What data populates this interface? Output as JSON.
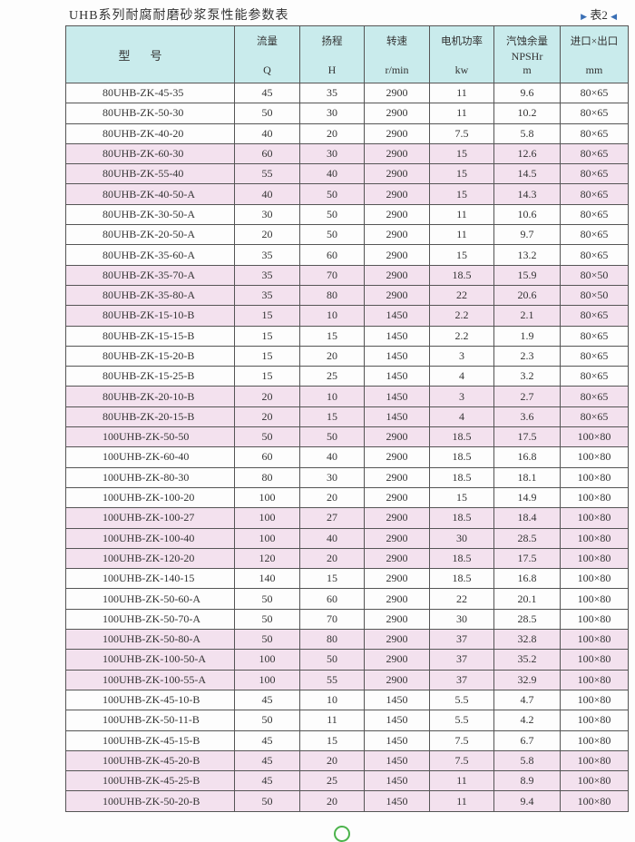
{
  "title": "UHB系列耐腐耐磨砂浆泵性能参数表",
  "table_tag": "表2",
  "headers": {
    "model": "型号",
    "q": "流量",
    "q_unit": "Q",
    "h": "扬程",
    "h_unit": "H",
    "speed": "转速",
    "speed_unit": "r/min",
    "power": "电机功率",
    "power_unit": "kw",
    "npsh": "汽蚀余量",
    "npsh_sub": "NPSHr",
    "npsh_unit": "m",
    "size": "进口×出口",
    "size_unit": "mm"
  },
  "colors": {
    "header_bg": "#c9ebec",
    "shaded_row": "#f3e1ee"
  },
  "rows": [
    [
      "80UHB-ZK-45-35",
      "45",
      "35",
      "2900",
      "11",
      "9.6",
      "80×65"
    ],
    [
      "80UHB-ZK-50-30",
      "50",
      "30",
      "2900",
      "11",
      "10.2",
      "80×65"
    ],
    [
      "80UHB-ZK-40-20",
      "40",
      "20",
      "2900",
      "7.5",
      "5.8",
      "80×65"
    ],
    [
      "80UHB-ZK-60-30",
      "60",
      "30",
      "2900",
      "15",
      "12.6",
      "80×65"
    ],
    [
      "80UHB-ZK-55-40",
      "55",
      "40",
      "2900",
      "15",
      "14.5",
      "80×65"
    ],
    [
      "80UHB-ZK-40-50-A",
      "40",
      "50",
      "2900",
      "15",
      "14.3",
      "80×65"
    ],
    [
      "80UHB-ZK-30-50-A",
      "30",
      "50",
      "2900",
      "11",
      "10.6",
      "80×65"
    ],
    [
      "80UHB-ZK-20-50-A",
      "20",
      "50",
      "2900",
      "11",
      "9.7",
      "80×65"
    ],
    [
      "80UHB-ZK-35-60-A",
      "35",
      "60",
      "2900",
      "15",
      "13.2",
      "80×65"
    ],
    [
      "80UHB-ZK-35-70-A",
      "35",
      "70",
      "2900",
      "18.5",
      "15.9",
      "80×50"
    ],
    [
      "80UHB-ZK-35-80-A",
      "35",
      "80",
      "2900",
      "22",
      "20.6",
      "80×50"
    ],
    [
      "80UHB-ZK-15-10-B",
      "15",
      "10",
      "1450",
      "2.2",
      "2.1",
      "80×65"
    ],
    [
      "80UHB-ZK-15-15-B",
      "15",
      "15",
      "1450",
      "2.2",
      "1.9",
      "80×65"
    ],
    [
      "80UHB-ZK-15-20-B",
      "15",
      "20",
      "1450",
      "3",
      "2.3",
      "80×65"
    ],
    [
      "80UHB-ZK-15-25-B",
      "15",
      "25",
      "1450",
      "4",
      "3.2",
      "80×65"
    ],
    [
      "80UHB-ZK-20-10-B",
      "20",
      "10",
      "1450",
      "3",
      "2.7",
      "80×65"
    ],
    [
      "80UHB-ZK-20-15-B",
      "20",
      "15",
      "1450",
      "4",
      "3.6",
      "80×65"
    ],
    [
      "100UHB-ZK-50-50",
      "50",
      "50",
      "2900",
      "18.5",
      "17.5",
      "100×80"
    ],
    [
      "100UHB-ZK-60-40",
      "60",
      "40",
      "2900",
      "18.5",
      "16.8",
      "100×80"
    ],
    [
      "100UHB-ZK-80-30",
      "80",
      "30",
      "2900",
      "18.5",
      "18.1",
      "100×80"
    ],
    [
      "100UHB-ZK-100-20",
      "100",
      "20",
      "2900",
      "15",
      "14.9",
      "100×80"
    ],
    [
      "100UHB-ZK-100-27",
      "100",
      "27",
      "2900",
      "18.5",
      "18.4",
      "100×80"
    ],
    [
      "100UHB-ZK-100-40",
      "100",
      "40",
      "2900",
      "30",
      "28.5",
      "100×80"
    ],
    [
      "100UHB-ZK-120-20",
      "120",
      "20",
      "2900",
      "18.5",
      "17.5",
      "100×80"
    ],
    [
      "100UHB-ZK-140-15",
      "140",
      "15",
      "2900",
      "18.5",
      "16.8",
      "100×80"
    ],
    [
      "100UHB-ZK-50-60-A",
      "50",
      "60",
      "2900",
      "22",
      "20.1",
      "100×80"
    ],
    [
      "100UHB-ZK-50-70-A",
      "50",
      "70",
      "2900",
      "30",
      "28.5",
      "100×80"
    ],
    [
      "100UHB-ZK-50-80-A",
      "50",
      "80",
      "2900",
      "37",
      "32.8",
      "100×80"
    ],
    [
      "100UHB-ZK-100-50-A",
      "100",
      "50",
      "2900",
      "37",
      "35.2",
      "100×80"
    ],
    [
      "100UHB-ZK-100-55-A",
      "100",
      "55",
      "2900",
      "37",
      "32.9",
      "100×80"
    ],
    [
      "100UHB-ZK-45-10-B",
      "45",
      "10",
      "1450",
      "5.5",
      "4.7",
      "100×80"
    ],
    [
      "100UHB-ZK-50-11-B",
      "50",
      "11",
      "1450",
      "5.5",
      "4.2",
      "100×80"
    ],
    [
      "100UHB-ZK-45-15-B",
      "45",
      "15",
      "1450",
      "7.5",
      "6.7",
      "100×80"
    ],
    [
      "100UHB-ZK-45-20-B",
      "45",
      "20",
      "1450",
      "7.5",
      "5.8",
      "100×80"
    ],
    [
      "100UHB-ZK-45-25-B",
      "45",
      "25",
      "1450",
      "11",
      "8.9",
      "100×80"
    ],
    [
      "100UHB-ZK-50-20-B",
      "50",
      "20",
      "1450",
      "11",
      "9.4",
      "100×80"
    ]
  ]
}
